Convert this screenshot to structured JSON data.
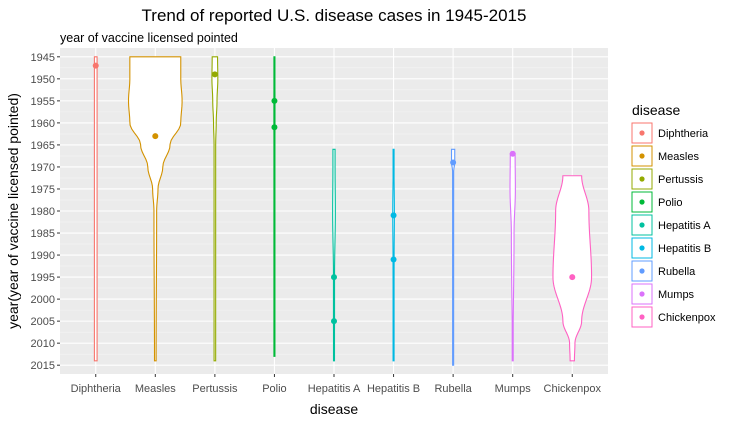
{
  "chart_data": {
    "type": "violin",
    "title": "Trend of reported U.S. disease cases in 1945-2015",
    "subtitle": "year of vaccine licensed pointed",
    "xlabel": "disease",
    "ylabel": "year(year of vaccine licensed pointed)",
    "y_reversed": true,
    "ylim": [
      1943,
      2017
    ],
    "yticks": [
      1945,
      1950,
      1955,
      1960,
      1965,
      1970,
      1975,
      1980,
      1985,
      1990,
      1995,
      2000,
      2005,
      2010,
      2015
    ],
    "grid": true,
    "legend": {
      "title": "disease",
      "position": "right"
    },
    "series": [
      {
        "name": "Diphtheria",
        "color": "#F8766D",
        "range": [
          1945,
          2014
        ],
        "width_profile": [
          [
            1945,
            0.05
          ],
          [
            2014,
            0.05
          ]
        ],
        "points": [
          1947
        ]
      },
      {
        "name": "Measles",
        "color": "#D39200",
        "range": [
          1945,
          2014
        ],
        "width_profile": [
          [
            1945,
            0.95
          ],
          [
            1950,
            0.95
          ],
          [
            1955,
            1.0
          ],
          [
            1960,
            0.95
          ],
          [
            1965,
            0.55
          ],
          [
            1970,
            0.28
          ],
          [
            1975,
            0.1
          ],
          [
            1980,
            0.05
          ],
          [
            2014,
            0.03
          ]
        ],
        "points": [
          1963
        ]
      },
      {
        "name": "Pertussis",
        "color": "#93AA00",
        "range": [
          1945,
          2014
        ],
        "width_profile": [
          [
            1945,
            0.1
          ],
          [
            1950,
            0.11
          ],
          [
            1955,
            0.08
          ],
          [
            1960,
            0.05
          ],
          [
            1965,
            0.03
          ],
          [
            2014,
            0.03
          ]
        ],
        "points": [
          1949
        ]
      },
      {
        "name": "Polio",
        "color": "#00BA38",
        "range": [
          1945,
          2013
        ],
        "width_profile": [
          [
            1945,
            0.01
          ],
          [
            1955,
            0.02
          ],
          [
            1961,
            0.02
          ],
          [
            1965,
            0.015
          ],
          [
            2013,
            0.01
          ]
        ],
        "points": [
          1955,
          1961
        ]
      },
      {
        "name": "Hepatitis A",
        "color": "#00C19F",
        "range": [
          1966,
          2014
        ],
        "width_profile": [
          [
            1966,
            0.04
          ],
          [
            1970,
            0.04
          ],
          [
            1980,
            0.05
          ],
          [
            1995,
            0.02
          ],
          [
            2005,
            0.02
          ],
          [
            2014,
            0.01
          ]
        ],
        "points": [
          1995,
          2005
        ]
      },
      {
        "name": "Hepatitis B",
        "color": "#00B9E3",
        "range": [
          1966,
          2014
        ],
        "width_profile": [
          [
            1966,
            0.01
          ],
          [
            1981,
            0.03
          ],
          [
            1991,
            0.02
          ],
          [
            2014,
            0.01
          ]
        ],
        "points": [
          1981,
          1991
        ]
      },
      {
        "name": "Rubella",
        "color": "#619CFF",
        "range": [
          1966,
          2015
        ],
        "width_profile": [
          [
            1966,
            0.06
          ],
          [
            1969,
            0.06
          ],
          [
            1971,
            0.02
          ],
          [
            2015,
            0.01
          ]
        ],
        "points": [
          1969
        ]
      },
      {
        "name": "Mumps",
        "color": "#DB72FB",
        "range": [
          1967,
          2014
        ],
        "width_profile": [
          [
            1967,
            0.09
          ],
          [
            1975,
            0.1
          ],
          [
            1985,
            0.05
          ],
          [
            2014,
            0.01
          ]
        ],
        "points": [
          1967
        ]
      },
      {
        "name": "Chickenpox",
        "color": "#FF61C3",
        "range": [
          1972,
          2014
        ],
        "width_profile": [
          [
            1972,
            0.35
          ],
          [
            1980,
            0.62
          ],
          [
            1995,
            0.72
          ],
          [
            2005,
            0.35
          ],
          [
            2010,
            0.1
          ],
          [
            2014,
            0.08
          ]
        ],
        "points": [
          1995
        ]
      }
    ]
  }
}
